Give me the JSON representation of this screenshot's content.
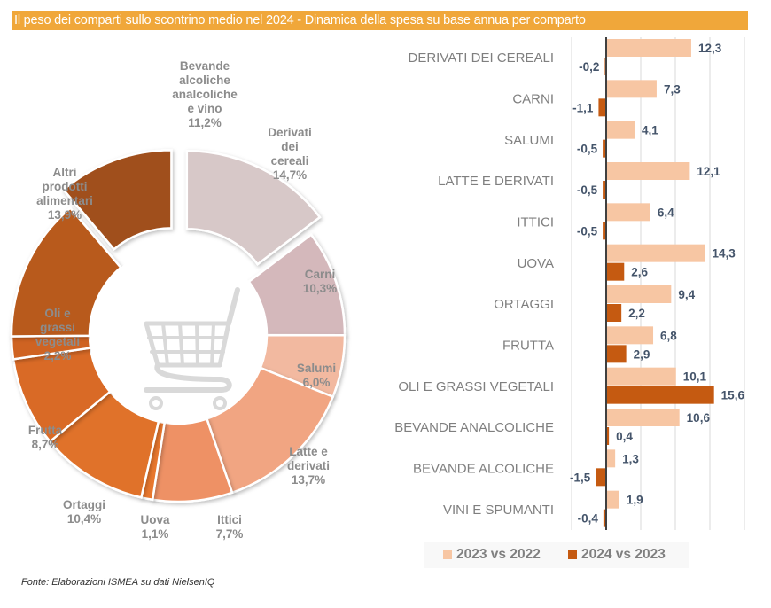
{
  "header": {
    "title": "Il peso dei comparti sullo scontrino medio nel 2024 - Dinamica della spesa su base annua per comparto"
  },
  "icons": {
    "center_icon": "shopping-cart-icon"
  },
  "colors": {
    "title_bar": "#f0a73a",
    "series_2023_vs_2022": "#f7c6a3",
    "series_2024_vs_2023": "#c55a11"
  },
  "chart_data": [
    {
      "type": "pie",
      "variant": "donut",
      "title": "Il peso dei comparti sullo scontrino medio nel 2024",
      "unit": "%",
      "start": "12 o'clock, clockwise",
      "slices": [
        {
          "label": "Derivati dei cereali",
          "lines": [
            "Derivati",
            "dei",
            "cereali",
            "14,7%"
          ],
          "value": 14.7,
          "color": "#d7c8c8",
          "exploded": true
        },
        {
          "label": "Carni",
          "lines": [
            "Carni",
            "10,3%"
          ],
          "value": 10.3,
          "color": "#d4b8bb",
          "exploded": false
        },
        {
          "label": "Salumi",
          "lines": [
            "Salumi",
            "6,0%"
          ],
          "value": 6.0,
          "color": "#f2b9a0",
          "exploded": false
        },
        {
          "label": "Latte e derivati",
          "lines": [
            "Latte e",
            "derivati",
            "13,7%"
          ],
          "value": 13.7,
          "color": "#f1a582",
          "exploded": false
        },
        {
          "label": "Ittici",
          "lines": [
            "Ittici",
            "7,7%"
          ],
          "value": 7.7,
          "color": "#ee9165",
          "exploded": false
        },
        {
          "label": "Uova",
          "lines": [
            "Uova",
            "1,1%"
          ],
          "value": 1.1,
          "color": "#e8772e",
          "exploded": false
        },
        {
          "label": "Ortaggi",
          "lines": [
            "Ortaggi",
            "10,4%"
          ],
          "value": 10.4,
          "color": "#e0722b",
          "exploded": false
        },
        {
          "label": "Frutta",
          "lines": [
            "Frutta",
            "8,7%"
          ],
          "value": 8.7,
          "color": "#d96a26",
          "exploded": false
        },
        {
          "label": "Oli e grassi vegetali",
          "lines": [
            "Oli e",
            "grassi",
            "vegetali",
            "2,2%"
          ],
          "value": 2.2,
          "color": "#cf6323",
          "exploded": false
        },
        {
          "label": "Altri prodotti alimentari",
          "lines": [
            "Altri",
            "prodotti",
            "alimentari",
            "13,9%"
          ],
          "value": 13.9,
          "color": "#b85a1f",
          "exploded": false
        },
        {
          "label": "Bevande alcoliche analcoliche e vino",
          "lines": [
            "Bevande",
            "alcoliche",
            "analcoliche",
            "e vino",
            "11,2%"
          ],
          "value": 11.2,
          "color": "#a0501e",
          "exploded": true
        }
      ]
    },
    {
      "type": "bar",
      "orientation": "horizontal",
      "title": "Dinamica della spesa su base annua per comparto",
      "unit": "%",
      "xlim": [
        -5,
        20
      ],
      "grid": true,
      "gridlines": [
        -5,
        0,
        5,
        10,
        15,
        20
      ],
      "legend_position": "bottom",
      "categories": [
        "DERIVATI DEI CEREALI",
        "CARNI",
        "SALUMI",
        "LATTE E DERIVATI",
        "ITTICI",
        "UOVA",
        "ORTAGGI",
        "FRUTTA",
        "OLI E GRASSI VEGETALI",
        "BEVANDE ANALCOLICHE",
        "BEVANDE ALCOLICHE",
        "VINI E SPUMANTI"
      ],
      "series": [
        {
          "name": "2023 vs 2022",
          "color": "#f7c6a3",
          "values": [
            12.3,
            7.3,
            4.1,
            12.1,
            6.4,
            14.3,
            9.4,
            6.8,
            10.1,
            10.6,
            1.3,
            1.9
          ],
          "labels": [
            "12,3",
            "7,3",
            "4,1",
            "12,1",
            "6,4",
            "14,3",
            "9,4",
            "6,8",
            "10,1",
            "10,6",
            "1,3",
            "1,9"
          ]
        },
        {
          "name": "2024 vs 2023",
          "color": "#c55a11",
          "values": [
            -0.2,
            -1.1,
            -0.5,
            -0.5,
            -0.5,
            2.6,
            2.2,
            2.9,
            15.6,
            0.4,
            -1.5,
            -0.4
          ],
          "labels": [
            "-0,2",
            "-1,1",
            "-0,5",
            "-0,5",
            "-0,5",
            "2,6",
            "2,2",
            "2,9",
            "15,6",
            "0,4",
            "-1,5",
            "-0,4"
          ]
        }
      ]
    }
  ],
  "legend": {
    "items": [
      {
        "label": "2023 vs 2022",
        "color": "#f7c6a3"
      },
      {
        "label": "2024 vs 2023",
        "color": "#c55a11"
      }
    ]
  },
  "footer": {
    "source": "Fonte: Elaborazioni ISMEA su dati NielsenIQ"
  }
}
